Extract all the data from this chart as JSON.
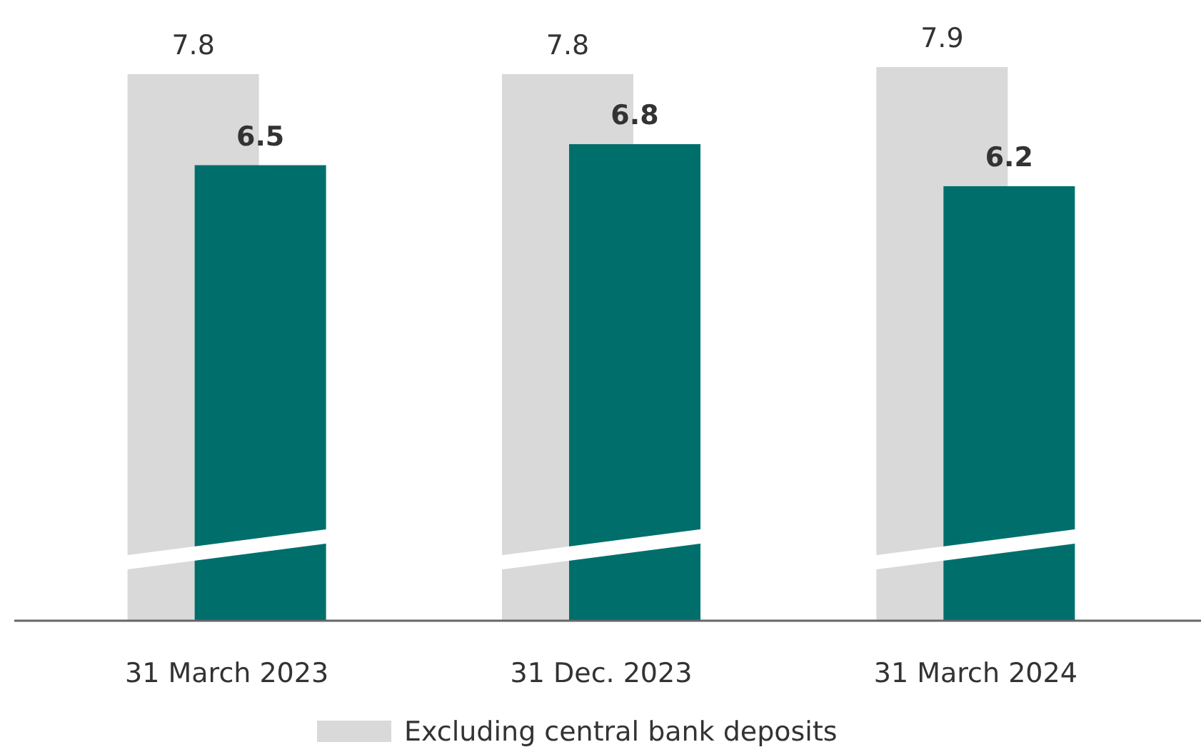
{
  "chart_data": {
    "type": "bar",
    "categories": [
      "31 March 2023",
      "31 Dec. 2023",
      "31 March 2024"
    ],
    "series": [
      {
        "name": "Excluding central bank deposits",
        "color": "#d9d9d9",
        "values": [
          7.8,
          7.8,
          7.9
        ]
      },
      {
        "color": "#006f6c",
        "values": [
          6.5,
          6.8,
          6.2
        ]
      }
    ],
    "data_labels": true,
    "legend": "bottom",
    "grid": false
  }
}
